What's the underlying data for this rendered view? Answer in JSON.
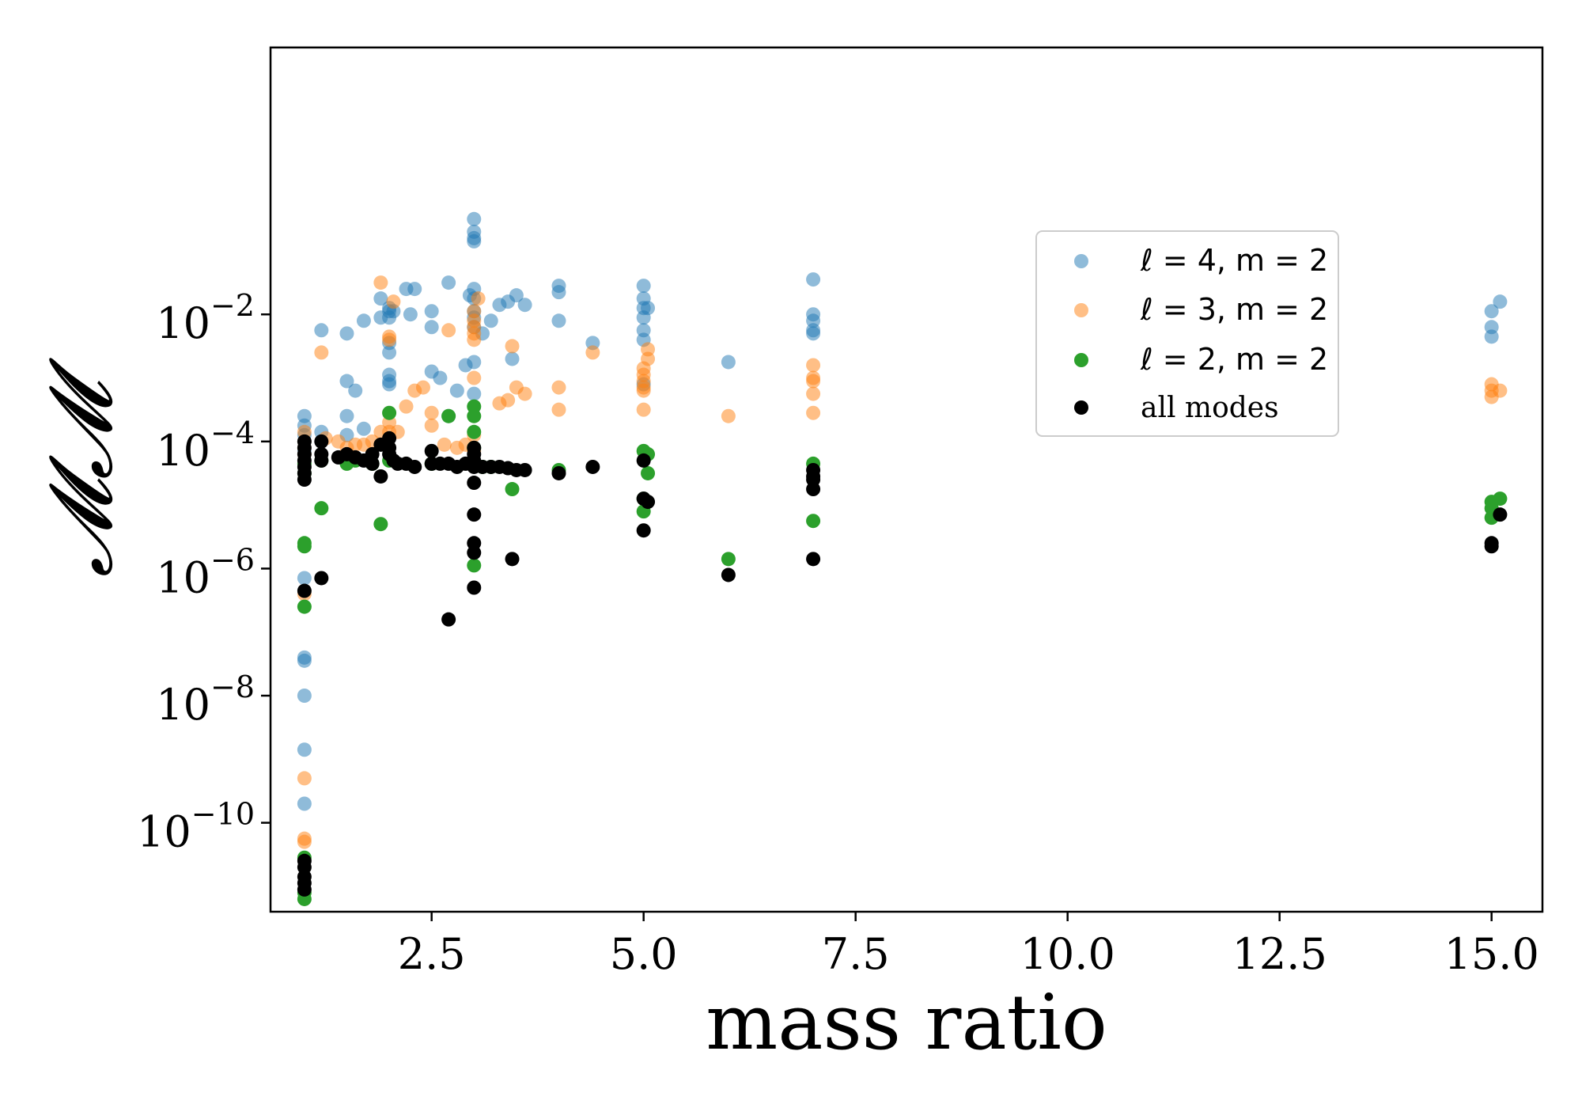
{
  "chart_data": {
    "type": "scatter",
    "title": "",
    "xlabel": "mass ratio",
    "ylabel": "𝓜𝓜",
    "yscale": "log",
    "xlim": [
      0.6,
      15.6
    ],
    "ylim_log10": [
      -11.4,
      2.2
    ],
    "xticks": [
      2.5,
      5.0,
      7.5,
      10.0,
      12.5,
      15.0
    ],
    "xtick_labels": [
      "2.5",
      "5.0",
      "7.5",
      "10.0",
      "12.5",
      "15.0"
    ],
    "yticks_exp": [
      -10,
      -8,
      -6,
      -4,
      -2
    ],
    "ytick_base": "10",
    "ytick_exponents": [
      "−10",
      "−8",
      "−6",
      "−4",
      "−2"
    ],
    "legend_position": "center-right",
    "series": [
      {
        "name": "ℓ = 4, m = 2",
        "legend_label": "ℓ = 4, m = 2",
        "color": "#1f77b4",
        "alpha": 0.5,
        "points": [
          [
            1.0,
            -3.6
          ],
          [
            1.0,
            -3.75
          ],
          [
            1.0,
            -3.9
          ],
          [
            1.0,
            -4.0
          ],
          [
            1.0,
            -4.15
          ],
          [
            1.0,
            -6.15
          ],
          [
            1.0,
            -7.4
          ],
          [
            1.0,
            -7.45
          ],
          [
            1.0,
            -8.0
          ],
          [
            1.0,
            -8.85
          ],
          [
            1.0,
            -9.7
          ],
          [
            1.2,
            -2.25
          ],
          [
            1.2,
            -3.85
          ],
          [
            1.5,
            -2.3
          ],
          [
            1.5,
            -3.05
          ],
          [
            1.5,
            -3.6
          ],
          [
            1.5,
            -3.9
          ],
          [
            1.6,
            -3.2
          ],
          [
            1.7,
            -2.1
          ],
          [
            1.7,
            -3.8
          ],
          [
            1.9,
            -1.75
          ],
          [
            1.9,
            -2.05
          ],
          [
            2.0,
            -1.9
          ],
          [
            2.0,
            -1.95
          ],
          [
            2.0,
            -2.05
          ],
          [
            2.0,
            -2.45
          ],
          [
            2.0,
            -2.6
          ],
          [
            2.0,
            -2.95
          ],
          [
            2.0,
            -3.05
          ],
          [
            2.0,
            -3.1
          ],
          [
            2.05,
            -1.95
          ],
          [
            2.2,
            -1.6
          ],
          [
            2.25,
            -2.0
          ],
          [
            2.3,
            -1.6
          ],
          [
            2.5,
            -1.95
          ],
          [
            2.5,
            -2.2
          ],
          [
            2.5,
            -2.9
          ],
          [
            2.6,
            -3.0
          ],
          [
            2.7,
            -1.5
          ],
          [
            2.7,
            -3.6
          ],
          [
            2.8,
            -3.2
          ],
          [
            2.9,
            -2.8
          ],
          [
            2.95,
            -1.7
          ],
          [
            3.0,
            -0.5
          ],
          [
            3.0,
            -0.7
          ],
          [
            3.0,
            -0.8
          ],
          [
            3.0,
            -0.85
          ],
          [
            3.0,
            -1.6
          ],
          [
            3.0,
            -1.75
          ],
          [
            3.0,
            -1.95
          ],
          [
            3.0,
            -2.05
          ],
          [
            3.0,
            -2.2
          ],
          [
            3.0,
            -2.75
          ],
          [
            3.0,
            -3.25
          ],
          [
            3.1,
            -2.3
          ],
          [
            3.2,
            -2.1
          ],
          [
            3.3,
            -1.85
          ],
          [
            3.4,
            -1.8
          ],
          [
            3.45,
            -2.7
          ],
          [
            3.5,
            -1.7
          ],
          [
            3.6,
            -1.85
          ],
          [
            4.0,
            -1.55
          ],
          [
            4.0,
            -1.65
          ],
          [
            4.0,
            -2.1
          ],
          [
            4.4,
            -2.45
          ],
          [
            5.0,
            -1.55
          ],
          [
            5.0,
            -1.75
          ],
          [
            5.0,
            -1.9
          ],
          [
            5.0,
            -2.05
          ],
          [
            5.0,
            -2.25
          ],
          [
            5.0,
            -2.4
          ],
          [
            5.05,
            -1.9
          ],
          [
            5.0,
            -3.1
          ],
          [
            6.0,
            -2.75
          ],
          [
            7.0,
            -1.45
          ],
          [
            7.0,
            -2.0
          ],
          [
            7.0,
            -2.1
          ],
          [
            7.0,
            -2.25
          ],
          [
            7.0,
            -2.3
          ],
          [
            15.0,
            -2.2
          ],
          [
            15.0,
            -2.35
          ],
          [
            15.0,
            -1.95
          ],
          [
            15.1,
            -1.8
          ]
        ]
      },
      {
        "name": "ℓ = 3, m = 2",
        "legend_label": "ℓ = 3, m = 2",
        "color": "#ff7f0e",
        "alpha": 0.5,
        "points": [
          [
            1.0,
            -3.85
          ],
          [
            1.0,
            -4.0
          ],
          [
            1.0,
            -4.1
          ],
          [
            1.0,
            -4.2
          ],
          [
            1.0,
            -6.4
          ],
          [
            1.0,
            -9.3
          ],
          [
            1.0,
            -10.25
          ],
          [
            1.0,
            -10.3
          ],
          [
            1.2,
            -2.6
          ],
          [
            1.25,
            -3.95
          ],
          [
            1.4,
            -4.0
          ],
          [
            1.5,
            -4.1
          ],
          [
            1.6,
            -4.05
          ],
          [
            1.7,
            -4.05
          ],
          [
            1.8,
            -4.0
          ],
          [
            1.9,
            -1.5
          ],
          [
            1.9,
            -3.85
          ],
          [
            2.0,
            -2.35
          ],
          [
            2.0,
            -2.4
          ],
          [
            2.0,
            -3.7
          ],
          [
            2.0,
            -3.85
          ],
          [
            2.05,
            -1.8
          ],
          [
            2.1,
            -3.85
          ],
          [
            2.2,
            -3.45
          ],
          [
            2.3,
            -3.2
          ],
          [
            2.4,
            -3.15
          ],
          [
            2.5,
            -3.55
          ],
          [
            2.5,
            -3.75
          ],
          [
            2.65,
            -4.05
          ],
          [
            2.7,
            -2.25
          ],
          [
            2.8,
            -4.1
          ],
          [
            2.9,
            -4.05
          ],
          [
            3.0,
            -1.95
          ],
          [
            3.0,
            -2.1
          ],
          [
            3.0,
            -2.2
          ],
          [
            3.0,
            -2.3
          ],
          [
            3.0,
            -2.4
          ],
          [
            3.0,
            -3.0
          ],
          [
            3.0,
            -3.9
          ],
          [
            3.0,
            -4.15
          ],
          [
            3.05,
            -1.75
          ],
          [
            3.3,
            -3.4
          ],
          [
            3.4,
            -3.35
          ],
          [
            3.45,
            -2.5
          ],
          [
            3.5,
            -3.15
          ],
          [
            3.6,
            -3.25
          ],
          [
            4.0,
            -3.15
          ],
          [
            4.0,
            -3.5
          ],
          [
            4.4,
            -2.6
          ],
          [
            5.0,
            -2.85
          ],
          [
            5.0,
            -2.95
          ],
          [
            5.0,
            -3.05
          ],
          [
            5.0,
            -3.15
          ],
          [
            5.0,
            -3.2
          ],
          [
            5.0,
            -3.5
          ],
          [
            5.05,
            -2.55
          ],
          [
            5.05,
            -2.7
          ],
          [
            6.0,
            -3.6
          ],
          [
            7.0,
            -2.8
          ],
          [
            7.0,
            -3.0
          ],
          [
            7.0,
            -3.05
          ],
          [
            7.0,
            -3.25
          ],
          [
            7.0,
            -3.55
          ],
          [
            15.0,
            -3.1
          ],
          [
            15.0,
            -3.2
          ],
          [
            15.0,
            -3.3
          ],
          [
            15.1,
            -3.2
          ]
        ]
      },
      {
        "name": "ℓ = 2, m = 2",
        "legend_label": "ℓ = 2, m = 2",
        "color": "#2ca02c",
        "alpha": 1.0,
        "points": [
          [
            1.0,
            -4.35
          ],
          [
            1.0,
            -4.5
          ],
          [
            1.0,
            -5.6
          ],
          [
            1.0,
            -5.65
          ],
          [
            1.0,
            -6.6
          ],
          [
            1.0,
            -10.55
          ],
          [
            1.0,
            -11.1
          ],
          [
            1.0,
            -11.2
          ],
          [
            1.2,
            -4.3
          ],
          [
            1.2,
            -5.05
          ],
          [
            1.5,
            -4.35
          ],
          [
            1.6,
            -4.3
          ],
          [
            1.8,
            -4.35
          ],
          [
            1.9,
            -5.3
          ],
          [
            2.0,
            -3.55
          ],
          [
            2.0,
            -4.3
          ],
          [
            2.5,
            -4.35
          ],
          [
            2.7,
            -3.6
          ],
          [
            3.0,
            -3.45
          ],
          [
            3.0,
            -3.6
          ],
          [
            3.0,
            -3.85
          ],
          [
            3.0,
            -4.1
          ],
          [
            3.0,
            -5.95
          ],
          [
            3.1,
            -4.4
          ],
          [
            3.2,
            -4.4
          ],
          [
            3.45,
            -4.75
          ],
          [
            4.0,
            -4.45
          ],
          [
            5.0,
            -4.15
          ],
          [
            5.05,
            -4.2
          ],
          [
            5.05,
            -4.5
          ],
          [
            5.0,
            -4.9
          ],
          [
            5.0,
            -5.1
          ],
          [
            6.0,
            -5.85
          ],
          [
            7.0,
            -4.35
          ],
          [
            7.0,
            -5.25
          ],
          [
            15.0,
            -4.95
          ],
          [
            15.0,
            -5.05
          ],
          [
            15.0,
            -5.2
          ],
          [
            15.1,
            -4.9
          ]
        ]
      },
      {
        "name": "all modes",
        "legend_label": "all modes",
        "color": "#000000",
        "alpha": 1.0,
        "points": [
          [
            1.0,
            -4.0
          ],
          [
            1.0,
            -4.1
          ],
          [
            1.0,
            -4.2
          ],
          [
            1.0,
            -4.3
          ],
          [
            1.0,
            -4.4
          ],
          [
            1.0,
            -4.5
          ],
          [
            1.0,
            -4.6
          ],
          [
            1.0,
            -6.35
          ],
          [
            1.0,
            -10.6
          ],
          [
            1.0,
            -10.7
          ],
          [
            1.0,
            -10.85
          ],
          [
            1.0,
            -10.95
          ],
          [
            1.0,
            -11.05
          ],
          [
            1.2,
            -4.0
          ],
          [
            1.2,
            -4.2
          ],
          [
            1.2,
            -4.3
          ],
          [
            1.2,
            -6.15
          ],
          [
            1.4,
            -4.25
          ],
          [
            1.5,
            -4.2
          ],
          [
            1.6,
            -4.25
          ],
          [
            1.7,
            -4.3
          ],
          [
            1.8,
            -4.2
          ],
          [
            1.8,
            -4.35
          ],
          [
            1.9,
            -4.05
          ],
          [
            1.9,
            -4.55
          ],
          [
            2.0,
            -3.95
          ],
          [
            2.0,
            -4.1
          ],
          [
            2.0,
            -4.2
          ],
          [
            2.05,
            -4.3
          ],
          [
            2.1,
            -4.35
          ],
          [
            2.2,
            -4.35
          ],
          [
            2.3,
            -4.4
          ],
          [
            2.5,
            -4.15
          ],
          [
            2.5,
            -4.35
          ],
          [
            2.6,
            -4.35
          ],
          [
            2.7,
            -4.35
          ],
          [
            2.7,
            -6.8
          ],
          [
            2.8,
            -4.4
          ],
          [
            2.9,
            -4.35
          ],
          [
            3.0,
            -4.1
          ],
          [
            3.0,
            -4.2
          ],
          [
            3.0,
            -4.3
          ],
          [
            3.0,
            -4.4
          ],
          [
            3.0,
            -4.65
          ],
          [
            3.0,
            -5.15
          ],
          [
            3.0,
            -5.6
          ],
          [
            3.0,
            -5.75
          ],
          [
            3.0,
            -6.3
          ],
          [
            3.1,
            -4.4
          ],
          [
            3.2,
            -4.4
          ],
          [
            3.3,
            -4.4
          ],
          [
            3.4,
            -4.42
          ],
          [
            3.5,
            -4.45
          ],
          [
            3.6,
            -4.45
          ],
          [
            3.45,
            -5.85
          ],
          [
            4.0,
            -4.5
          ],
          [
            4.4,
            -4.4
          ],
          [
            5.0,
            -4.3
          ],
          [
            5.0,
            -4.9
          ],
          [
            5.05,
            -4.95
          ],
          [
            5.0,
            -5.4
          ],
          [
            6.0,
            -6.1
          ],
          [
            7.0,
            -4.45
          ],
          [
            7.0,
            -4.55
          ],
          [
            7.0,
            -4.6
          ],
          [
            7.0,
            -4.75
          ],
          [
            7.0,
            -5.85
          ],
          [
            15.0,
            -5.6
          ],
          [
            15.0,
            -5.65
          ],
          [
            15.1,
            -5.15
          ]
        ]
      }
    ]
  }
}
